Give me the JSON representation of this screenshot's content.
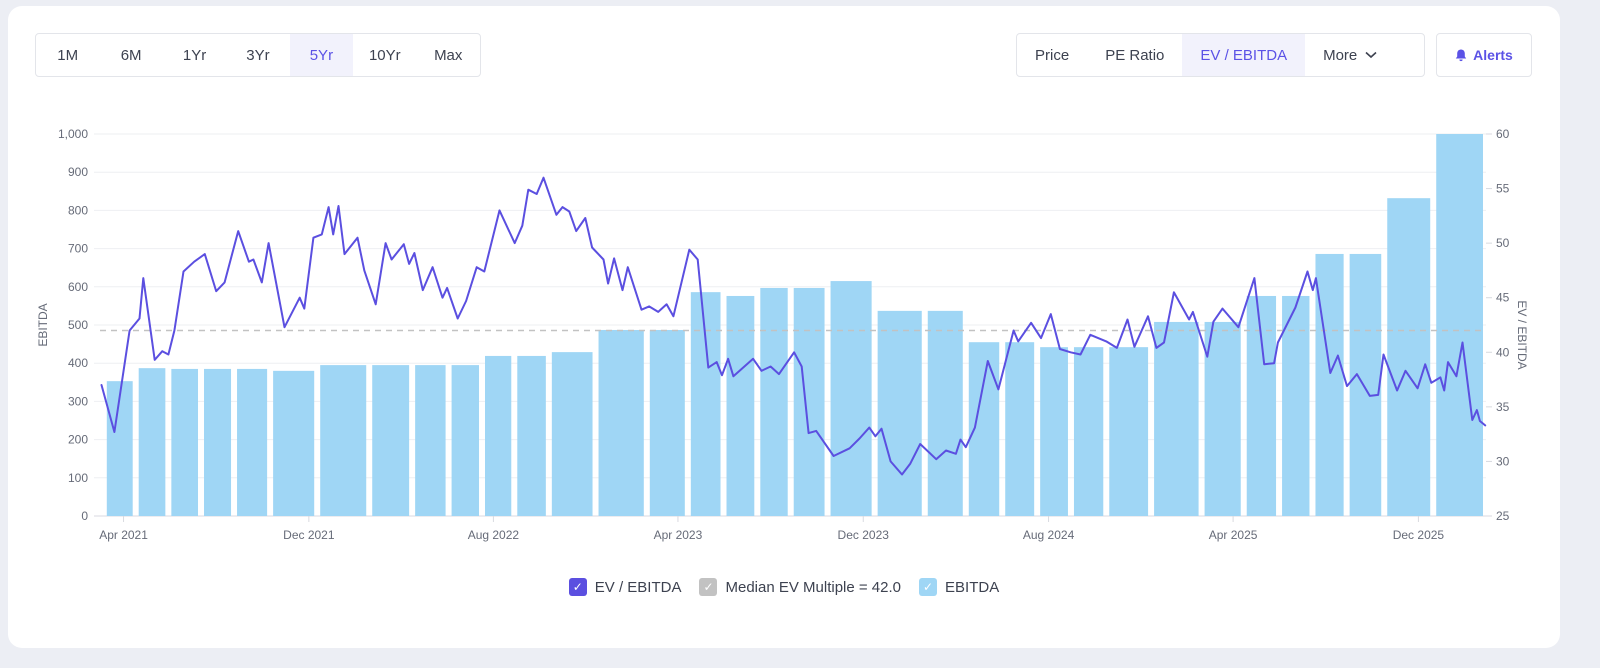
{
  "toolbar": {
    "ranges": [
      {
        "label": "1M",
        "active": false
      },
      {
        "label": "6M",
        "active": false
      },
      {
        "label": "1Yr",
        "active": false
      },
      {
        "label": "3Yr",
        "active": false
      },
      {
        "label": "5Yr",
        "active": true
      },
      {
        "label": "10Yr",
        "active": false
      },
      {
        "label": "Max",
        "active": false
      }
    ],
    "metrics": [
      {
        "label": "Price",
        "active": false
      },
      {
        "label": "PE Ratio",
        "active": false
      },
      {
        "label": "EV / EBITDA",
        "active": true
      },
      {
        "label": "More",
        "active": false,
        "icon": "chevron-down-icon"
      }
    ],
    "alerts": {
      "label": "Alerts",
      "icon": "bell-icon"
    }
  },
  "colors": {
    "line": "#5b4fe0",
    "bars": "#9fd6f5",
    "median": "#c2c2c2",
    "accent": "#5b52e6"
  },
  "chart_data": {
    "type": "bar+line",
    "xrange": [
      "2021-03-01",
      "2026-02-28"
    ],
    "xticks": [
      {
        "date": "2021-04-01",
        "label": "Apr 2021"
      },
      {
        "date": "2021-12-01",
        "label": "Dec 2021"
      },
      {
        "date": "2022-08-01",
        "label": "Aug 2022"
      },
      {
        "date": "2023-04-01",
        "label": "Apr 2023"
      },
      {
        "date": "2023-12-01",
        "label": "Dec 2023"
      },
      {
        "date": "2024-08-01",
        "label": "Aug 2024"
      },
      {
        "date": "2025-04-01",
        "label": "Apr 2025"
      },
      {
        "date": "2025-12-01",
        "label": "Dec 2025"
      }
    ],
    "y_left": {
      "label": "EBITDA",
      "range": [
        0,
        1000
      ],
      "ticks": [
        0,
        100,
        200,
        300,
        400,
        500,
        600,
        700,
        800,
        900,
        1000
      ],
      "tick_labels": [
        "0",
        "100",
        "200",
        "300",
        "400",
        "500",
        "600",
        "700",
        "800",
        "900",
        "1,000"
      ]
    },
    "y_right": {
      "label": "EV / EBITDA",
      "range": [
        25,
        60
      ],
      "ticks": [
        25,
        30,
        35,
        40,
        45,
        50,
        55,
        60
      ],
      "tick_labels": [
        "25",
        "30",
        "35",
        "40",
        "45",
        "50",
        "55",
        "60"
      ]
    },
    "grid": true,
    "legend_placement": "bottom",
    "median": {
      "name": "Median EV Multiple = 42.0",
      "value": 42.0,
      "axis": "right"
    },
    "bars": {
      "name": "EBITDA",
      "axis": "left",
      "points": [
        [
          "2021-03-27",
          353
        ],
        [
          "2021-05-08",
          387
        ],
        [
          "2021-06-21",
          385
        ],
        [
          "2021-08-02",
          385
        ],
        [
          "2021-09-16",
          385
        ],
        [
          "2021-11-05",
          380
        ],
        [
          "2022-01-18",
          395
        ],
        [
          "2022-03-22",
          395
        ],
        [
          "2022-05-11",
          395
        ],
        [
          "2022-06-26",
          395
        ],
        [
          "2022-08-07",
          419
        ],
        [
          "2022-09-19",
          419
        ],
        [
          "2022-11-06",
          429
        ],
        [
          "2023-01-20",
          487
        ],
        [
          "2023-03-21",
          487
        ],
        [
          "2023-05-08",
          586
        ],
        [
          "2023-06-23",
          576
        ],
        [
          "2023-08-05",
          597
        ],
        [
          "2023-09-19",
          597
        ],
        [
          "2023-11-10",
          615
        ],
        [
          "2024-01-21",
          537
        ],
        [
          "2024-03-21",
          537
        ],
        [
          "2024-05-08",
          455
        ],
        [
          "2024-06-25",
          455
        ],
        [
          "2024-08-08",
          442
        ],
        [
          "2024-09-22",
          442
        ],
        [
          "2024-11-09",
          442
        ],
        [
          "2025-01-18",
          508
        ],
        [
          "2025-03-22",
          508
        ],
        [
          "2025-05-09",
          576
        ],
        [
          "2025-06-23",
          576
        ],
        [
          "2025-08-05",
          686
        ],
        [
          "2025-09-21",
          686
        ],
        [
          "2025-11-12",
          832
        ],
        [
          "2026-01-28",
          1000
        ]
      ]
    },
    "line": {
      "name": "EV / EBITDA",
      "axis": "right",
      "points": [
        [
          "2021-03-03",
          37.0
        ],
        [
          "2021-03-20",
          32.7
        ],
        [
          "2021-04-09",
          42.0
        ],
        [
          "2021-04-22",
          43.1
        ],
        [
          "2021-04-27",
          46.8
        ],
        [
          "2021-05-12",
          39.3
        ],
        [
          "2021-05-22",
          40.1
        ],
        [
          "2021-05-30",
          39.8
        ],
        [
          "2021-06-07",
          42.0
        ],
        [
          "2021-06-19",
          47.4
        ],
        [
          "2021-07-03",
          48.3
        ],
        [
          "2021-07-17",
          49.0
        ],
        [
          "2021-08-01",
          45.6
        ],
        [
          "2021-08-12",
          46.4
        ],
        [
          "2021-08-30",
          51.1
        ],
        [
          "2021-09-13",
          48.3
        ],
        [
          "2021-09-19",
          48.5
        ],
        [
          "2021-09-30",
          46.4
        ],
        [
          "2021-10-09",
          50.0
        ],
        [
          "2021-10-30",
          42.3
        ],
        [
          "2021-11-19",
          45.0
        ],
        [
          "2021-11-25",
          44.0
        ],
        [
          "2021-12-07",
          50.5
        ],
        [
          "2021-12-18",
          50.8
        ],
        [
          "2021-12-27",
          53.3
        ],
        [
          "2022-01-02",
          50.8
        ],
        [
          "2022-01-09",
          53.4
        ],
        [
          "2022-01-17",
          49.0
        ],
        [
          "2022-02-03",
          50.5
        ],
        [
          "2022-02-12",
          47.5
        ],
        [
          "2022-02-27",
          44.4
        ],
        [
          "2022-03-12",
          50.0
        ],
        [
          "2022-03-20",
          48.5
        ],
        [
          "2022-04-05",
          49.9
        ],
        [
          "2022-04-12",
          48.1
        ],
        [
          "2022-04-19",
          49.1
        ],
        [
          "2022-04-30",
          45.7
        ],
        [
          "2022-05-13",
          47.8
        ],
        [
          "2022-05-26",
          45.0
        ],
        [
          "2022-06-01",
          45.9
        ],
        [
          "2022-06-15",
          43.1
        ],
        [
          "2022-06-26",
          44.7
        ],
        [
          "2022-07-10",
          47.8
        ],
        [
          "2022-07-20",
          47.4
        ],
        [
          "2022-08-09",
          53.0
        ],
        [
          "2022-08-29",
          50.0
        ],
        [
          "2022-09-08",
          51.6
        ],
        [
          "2022-09-16",
          54.9
        ],
        [
          "2022-09-27",
          54.5
        ],
        [
          "2022-10-06",
          56.0
        ],
        [
          "2022-10-23",
          52.6
        ],
        [
          "2022-10-31",
          53.3
        ],
        [
          "2022-11-09",
          52.9
        ],
        [
          "2022-11-18",
          51.1
        ],
        [
          "2022-11-30",
          52.3
        ],
        [
          "2022-12-09",
          49.6
        ],
        [
          "2022-12-24",
          48.5
        ],
        [
          "2022-12-30",
          46.3
        ],
        [
          "2023-01-07",
          48.6
        ],
        [
          "2023-01-18",
          45.7
        ],
        [
          "2023-01-25",
          47.8
        ],
        [
          "2023-02-12",
          43.9
        ],
        [
          "2023-02-22",
          44.2
        ],
        [
          "2023-03-06",
          43.7
        ],
        [
          "2023-03-17",
          44.4
        ],
        [
          "2023-03-26",
          43.3
        ],
        [
          "2023-04-16",
          49.4
        ],
        [
          "2023-04-27",
          48.5
        ],
        [
          "2023-05-11",
          38.6
        ],
        [
          "2023-05-22",
          39.1
        ],
        [
          "2023-05-29",
          37.9
        ],
        [
          "2023-06-06",
          39.4
        ],
        [
          "2023-06-13",
          37.8
        ],
        [
          "2023-07-09",
          39.4
        ],
        [
          "2023-07-20",
          38.3
        ],
        [
          "2023-08-01",
          38.7
        ],
        [
          "2023-08-12",
          38.0
        ],
        [
          "2023-09-01",
          40.0
        ],
        [
          "2023-09-11",
          38.7
        ],
        [
          "2023-09-20",
          32.6
        ],
        [
          "2023-09-30",
          32.8
        ],
        [
          "2023-10-23",
          30.5
        ],
        [
          "2023-11-13",
          31.2
        ],
        [
          "2023-11-26",
          32.1
        ],
        [
          "2023-12-09",
          33.1
        ],
        [
          "2023-12-17",
          32.3
        ],
        [
          "2023-12-25",
          33.0
        ],
        [
          "2024-01-06",
          30.0
        ],
        [
          "2024-01-21",
          28.8
        ],
        [
          "2024-02-01",
          29.8
        ],
        [
          "2024-02-14",
          31.6
        ],
        [
          "2024-03-06",
          30.2
        ],
        [
          "2024-03-19",
          31.0
        ],
        [
          "2024-04-01",
          30.7
        ],
        [
          "2024-04-07",
          32.0
        ],
        [
          "2024-04-14",
          31.3
        ],
        [
          "2024-04-26",
          33.1
        ],
        [
          "2024-05-13",
          39.2
        ],
        [
          "2024-05-27",
          36.6
        ],
        [
          "2024-06-16",
          42.0
        ],
        [
          "2024-06-22",
          41.0
        ],
        [
          "2024-07-09",
          42.7
        ],
        [
          "2024-07-22",
          41.3
        ],
        [
          "2024-08-04",
          43.5
        ],
        [
          "2024-08-16",
          40.3
        ],
        [
          "2024-08-30",
          40.0
        ],
        [
          "2024-09-12",
          39.8
        ],
        [
          "2024-09-25",
          41.6
        ],
        [
          "2024-10-16",
          41.0
        ],
        [
          "2024-10-30",
          40.4
        ],
        [
          "2024-11-13",
          43.0
        ],
        [
          "2024-11-22",
          40.5
        ],
        [
          "2024-12-10",
          43.3
        ],
        [
          "2024-12-21",
          40.4
        ],
        [
          "2024-12-31",
          40.9
        ],
        [
          "2025-01-13",
          45.5
        ],
        [
          "2025-02-02",
          43.0
        ],
        [
          "2025-02-07",
          43.7
        ],
        [
          "2025-02-15",
          42.0
        ],
        [
          "2025-02-26",
          39.6
        ],
        [
          "2025-03-06",
          42.8
        ],
        [
          "2025-03-18",
          44.0
        ],
        [
          "2025-04-08",
          42.3
        ],
        [
          "2025-04-29",
          46.8
        ],
        [
          "2025-05-12",
          38.9
        ],
        [
          "2025-05-25",
          39.0
        ],
        [
          "2025-05-30",
          40.9
        ],
        [
          "2025-06-22",
          44.1
        ],
        [
          "2025-07-08",
          47.4
        ],
        [
          "2025-07-15",
          45.7
        ],
        [
          "2025-07-19",
          46.8
        ],
        [
          "2025-08-07",
          38.1
        ],
        [
          "2025-08-17",
          39.7
        ],
        [
          "2025-08-29",
          36.9
        ],
        [
          "2025-09-11",
          38.0
        ],
        [
          "2025-09-28",
          36.0
        ],
        [
          "2025-10-09",
          36.1
        ],
        [
          "2025-10-16",
          39.8
        ],
        [
          "2025-11-03",
          36.5
        ],
        [
          "2025-11-14",
          38.3
        ],
        [
          "2025-11-30",
          36.7
        ],
        [
          "2025-12-10",
          38.9
        ],
        [
          "2025-12-18",
          37.2
        ],
        [
          "2025-12-30",
          37.7
        ],
        [
          "2026-01-04",
          36.5
        ],
        [
          "2026-01-09",
          39.1
        ],
        [
          "2026-01-20",
          37.8
        ],
        [
          "2026-01-28",
          40.9
        ],
        [
          "2026-02-10",
          33.8
        ],
        [
          "2026-02-16",
          34.7
        ],
        [
          "2026-02-20",
          33.7
        ],
        [
          "2026-02-27",
          33.3
        ]
      ]
    }
  },
  "legend": [
    {
      "label": "EV / EBITDA",
      "checked": true,
      "color": "#5b4fe0"
    },
    {
      "label": "Median EV Multiple = 42.0",
      "checked": true,
      "color": "#c2c2c2"
    },
    {
      "label": "EBITDA",
      "checked": true,
      "color": "#9fd6f5"
    }
  ]
}
